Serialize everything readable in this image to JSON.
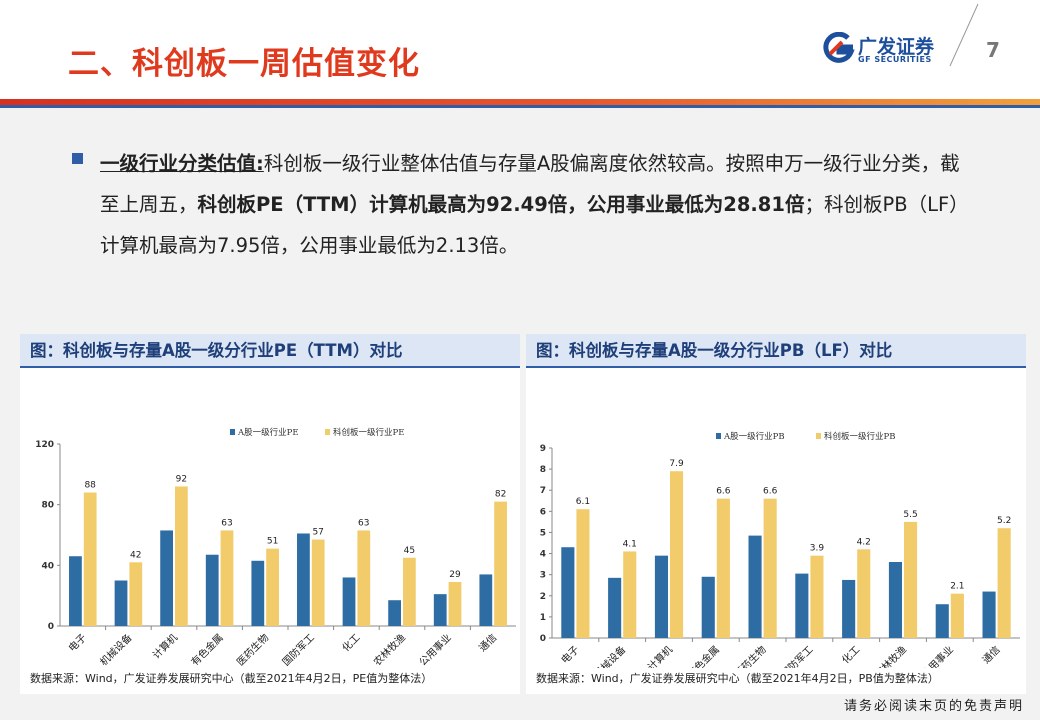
{
  "header": {
    "title": "二、科创板一周估值变化",
    "logo_cn": "广发证券",
    "logo_en": "GF SECURITIES",
    "page_number": "7"
  },
  "bullet": {
    "lead": "一级行业分类估值:",
    "seg1": "科创板一级行业整体估值与存量A股偏离度依然较高。按照申万一级行业分类，截至上周五，",
    "bold": "科创板PE（TTM）计算机最高为92.49倍，公用事业最低为28.81倍",
    "seg2": "；科创板PB（LF）计算机最高为7.95倍，公用事业最低为2.13倍。"
  },
  "panels": {
    "left_title": "图：科创板与存量A股一级分行业PE（TTM）对比",
    "right_title": "图：科创板与存量A股一级分行业PB（LF）对比",
    "left_source": "数据来源：Wind，广发证券发展研究中心（截至2021年4月2日，PE值为整体法）",
    "right_source": "数据来源：Wind，广发证券发展研究中心（截至2021年4月2日，PB值为整体法）"
  },
  "footer": {
    "disclaimer": "请务必阅读末页的免责声明"
  },
  "colors": {
    "series_a": "#2e6da4",
    "series_b": "#f2cc6b",
    "title_red": "#e03a1e",
    "brand_blue": "#2f5da8"
  },
  "chart_data": [
    {
      "type": "bar",
      "categories": [
        "电子",
        "机械设备",
        "计算机",
        "有色金属",
        "医药生物",
        "国防军工",
        "化工",
        "农林牧渔",
        "公用事业",
        "通信"
      ],
      "series": [
        {
          "name": "A股一级行业PE",
          "values": [
            46,
            30,
            63,
            47,
            43,
            61,
            32,
            17,
            21,
            34
          ]
        },
        {
          "name": "科创板一级行业PE",
          "values": [
            88,
            42,
            92,
            63,
            51,
            57,
            63,
            45,
            29,
            82
          ]
        }
      ],
      "data_labels": [
        "88",
        "42",
        "92",
        "63",
        "51",
        "57",
        "63",
        "45",
        "29",
        "82"
      ],
      "yticks": [
        "0",
        "40",
        "80",
        "120"
      ],
      "ylim": [
        0,
        120
      ],
      "legend": "top-center",
      "grid": false
    },
    {
      "type": "bar",
      "categories": [
        "电子",
        "机械设备",
        "计算机",
        "有色金属",
        "医药生物",
        "国防军工",
        "化工",
        "农林牧渔",
        "公用事业",
        "通信"
      ],
      "series": [
        {
          "name": "A股一级行业PB",
          "values": [
            4.3,
            2.85,
            3.9,
            2.9,
            4.85,
            3.05,
            2.75,
            3.6,
            1.6,
            2.2
          ]
        },
        {
          "name": "科创板一级行业PB",
          "values": [
            6.1,
            4.1,
            7.9,
            6.6,
            6.6,
            3.9,
            4.2,
            5.5,
            2.1,
            5.2
          ]
        }
      ],
      "data_labels": [
        "6.1",
        "4.1",
        "7.9",
        "6.6",
        "6.6",
        "3.9",
        "4.2",
        "5.5",
        "2.1",
        "5.2"
      ],
      "yticks": [
        "0",
        "1",
        "2",
        "3",
        "4",
        "5",
        "6",
        "7",
        "8",
        "9"
      ],
      "ylim": [
        0,
        9
      ],
      "legend": "top-center",
      "grid": false
    }
  ]
}
